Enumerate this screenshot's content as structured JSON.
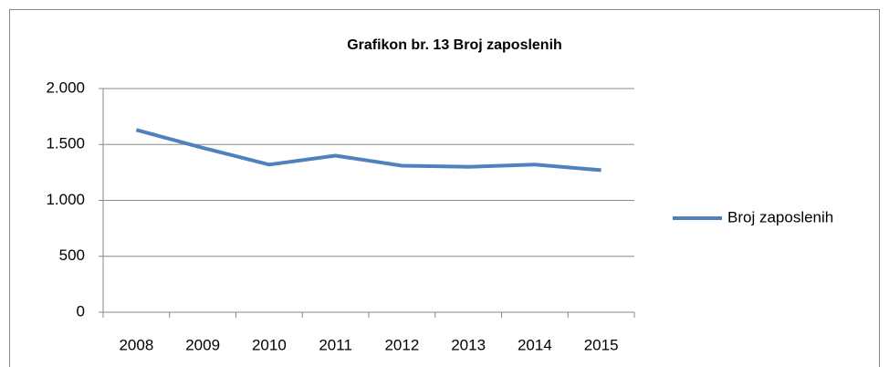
{
  "chart_data": {
    "type": "line",
    "title": "Grafikon br. 13 Broj zaposlenih",
    "categories": [
      "2008",
      "2009",
      "2010",
      "2011",
      "2012",
      "2013",
      "2014",
      "2015"
    ],
    "series": [
      {
        "name": "Broj zaposlenih",
        "color": "#4f81bd",
        "values": [
          1630,
          1470,
          1320,
          1400,
          1310,
          1300,
          1320,
          1270
        ]
      }
    ],
    "ylim": [
      0,
      2000
    ],
    "yticks": [
      0,
      500,
      {
        "value": 1000,
        "label": "1.000"
      },
      {
        "value": 1500,
        "label": "1.500"
      },
      {
        "value": 2000,
        "label": "2.000"
      }
    ],
    "grid": true,
    "legend": "right"
  }
}
